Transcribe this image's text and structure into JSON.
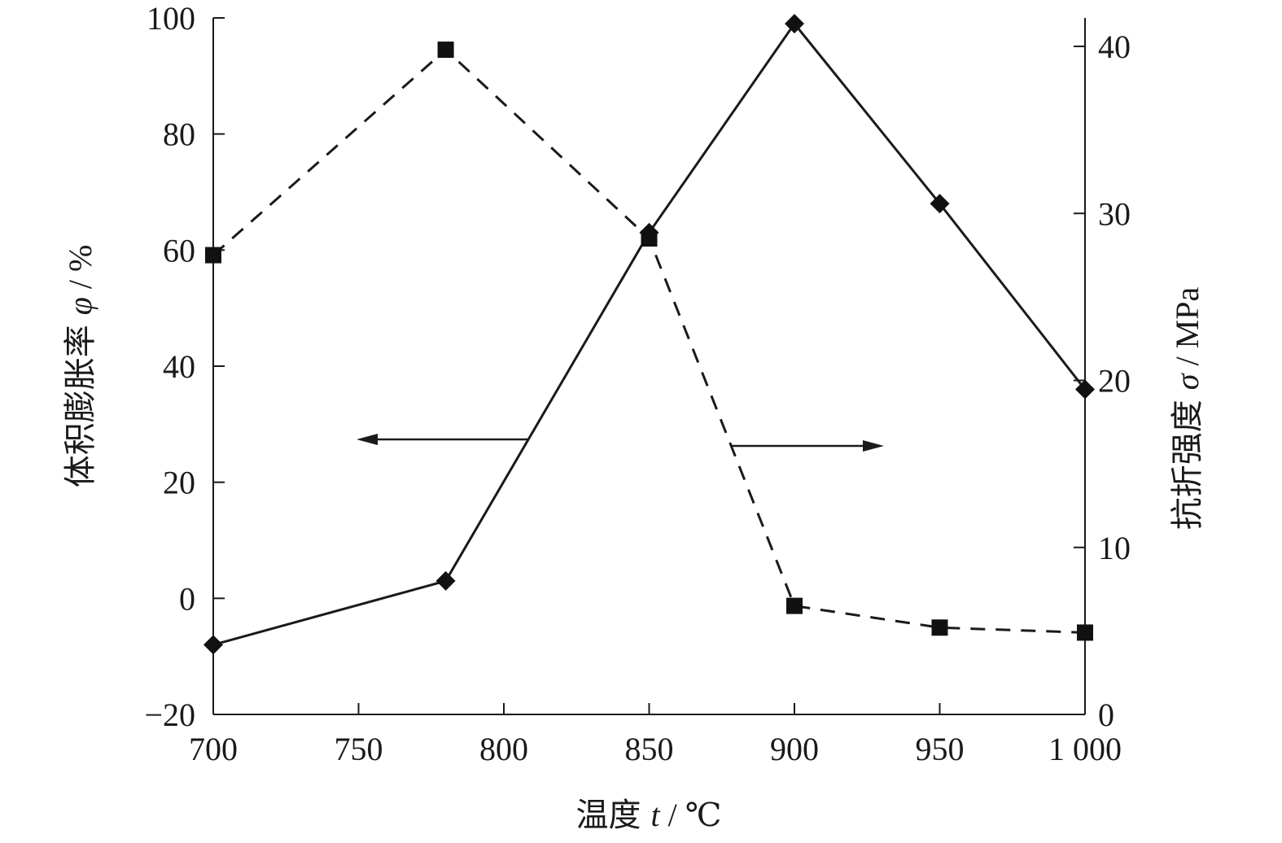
{
  "chart_data": {
    "type": "line",
    "x": [
      700,
      780,
      850,
      900,
      950,
      1000
    ],
    "xlabel": {
      "main": "温度",
      "var": "t",
      "unit": "℃"
    },
    "xlim": [
      700,
      1000
    ],
    "xticks": [
      700,
      750,
      800,
      850,
      900,
      950,
      1000
    ],
    "xtick_labels": [
      "700",
      "750",
      "800",
      "850",
      "900",
      "950",
      "1 000"
    ],
    "y_left": {
      "label": {
        "main": "体积膨胀率",
        "var": "φ",
        "unit": "%"
      },
      "lim": [
        -20,
        100
      ],
      "ticks": [
        -20,
        0,
        20,
        40,
        60,
        80,
        100
      ],
      "tick_labels": [
        "−20",
        "0",
        "20",
        "40",
        "60",
        "80",
        "100"
      ]
    },
    "y_right": {
      "label": {
        "main": "抗折强度",
        "var": "σ",
        "unit": "MPa"
      },
      "lim": [
        0,
        40
      ],
      "ticks": [
        0,
        10,
        20,
        30,
        40
      ],
      "tick_labels": [
        "0",
        "10",
        "20",
        "30",
        "40"
      ]
    },
    "series": [
      {
        "axis": "left",
        "style": "solid",
        "marker": "diamond",
        "values": [
          -8,
          3,
          63,
          99,
          68,
          36
        ]
      },
      {
        "axis": "right",
        "style": "dashed",
        "marker": "square",
        "values": [
          27.5,
          39.8,
          28.5,
          6.5,
          5.2,
          4.9
        ]
      }
    ],
    "annotations": [
      {
        "type": "arrow",
        "direction": "left",
        "indicates": "left axis"
      },
      {
        "type": "arrow",
        "direction": "right",
        "indicates": "right axis"
      }
    ],
    "grid": false,
    "legend": "none"
  }
}
